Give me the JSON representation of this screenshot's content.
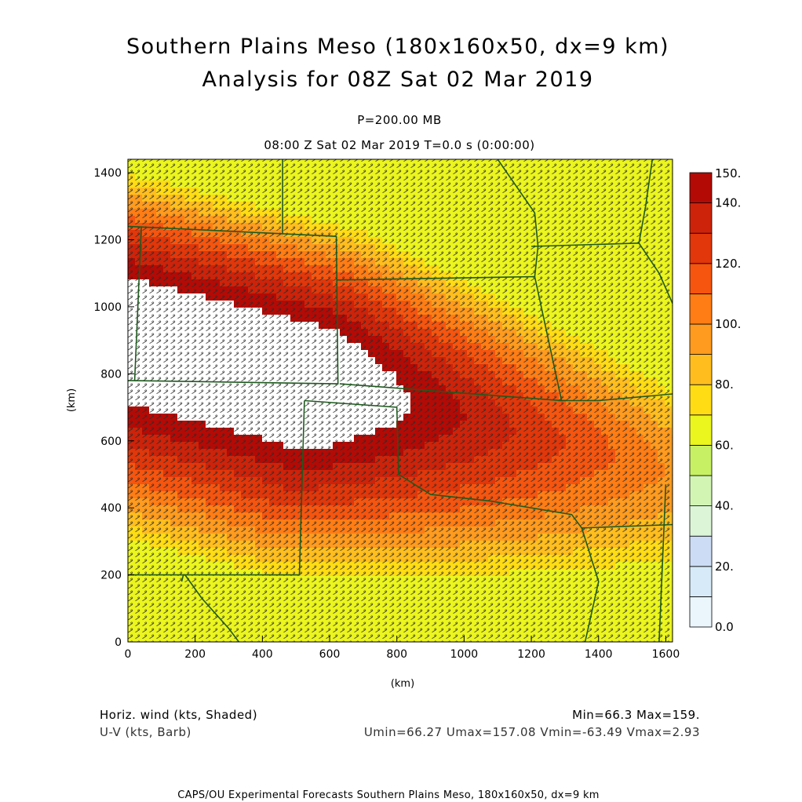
{
  "header": {
    "title_line1": "Southern Plains Meso (180x160x50, dx=9 km)",
    "title_line2": "Analysis for 08Z Sat 02 Mar 2019",
    "level": "P=200.00 MB",
    "time": "08:00 Z Sat 02 Mar 2019    T=0.0 s (0:00:00)"
  },
  "footer": {
    "field1": "Horiz. wind (kts, Shaded)",
    "field2": "U-V (kts, Barb)",
    "stats1": "Min=66.3 Max=159.",
    "stats2": "Umin=66.27 Umax=157.08 Vmin=-63.49 Vmax=2.93",
    "credits": "CAPS/OU Experimental Forecasts  Southern Plains Meso, 180x160x50, dx=9 km"
  },
  "chart_data": {
    "type": "heatmap",
    "xlabel": "(km)",
    "ylabel": "(km)",
    "xlim": [
      0,
      1620
    ],
    "ylim": [
      0,
      1440
    ],
    "x_ticks": [
      "0",
      "200",
      "400",
      "600",
      "800",
      "1000",
      "1200",
      "1400",
      "1600"
    ],
    "y_ticks": [
      "0",
      "200",
      "400",
      "600",
      "800",
      "1000",
      "1200",
      "1400"
    ],
    "colorbar": {
      "levels": [
        0,
        10,
        20,
        30,
        40,
        50,
        60,
        70,
        80,
        90,
        100,
        110,
        120,
        130,
        140,
        150
      ],
      "labels": [
        "0.0",
        "20.",
        "40.",
        "60.",
        "80.",
        "100.",
        "120.",
        "140.",
        "150."
      ],
      "colors": [
        "#eaf6fc",
        "#d6ebf7",
        "#ccdcf5",
        "#dcf5d6",
        "#d2f5b4",
        "#c8f064",
        "#ebf51e",
        "#ffdc14",
        "#ffbe1e",
        "#ff9b1e",
        "#ff7d14",
        "#f5550f",
        "#e1370a",
        "#cd230a",
        "#b40a05"
      ],
      "above_max_color": "#ffffff"
    },
    "wind_speed_kts": {
      "min": 66.3,
      "max": 159
    },
    "components": {
      "umin": 66.27,
      "umax": 157.08,
      "vmin": -63.49,
      "vmax": 2.93
    },
    "pattern": "Jet stream core oriented northwest-to-southeast across the domain, strongest over the Texas/Oklahoma panhandles; winds decrease toward the northeast and southwest corners.",
    "colors": {
      "state_borders": "#1e5a1e",
      "barbs": "#2b2b2b"
    }
  }
}
